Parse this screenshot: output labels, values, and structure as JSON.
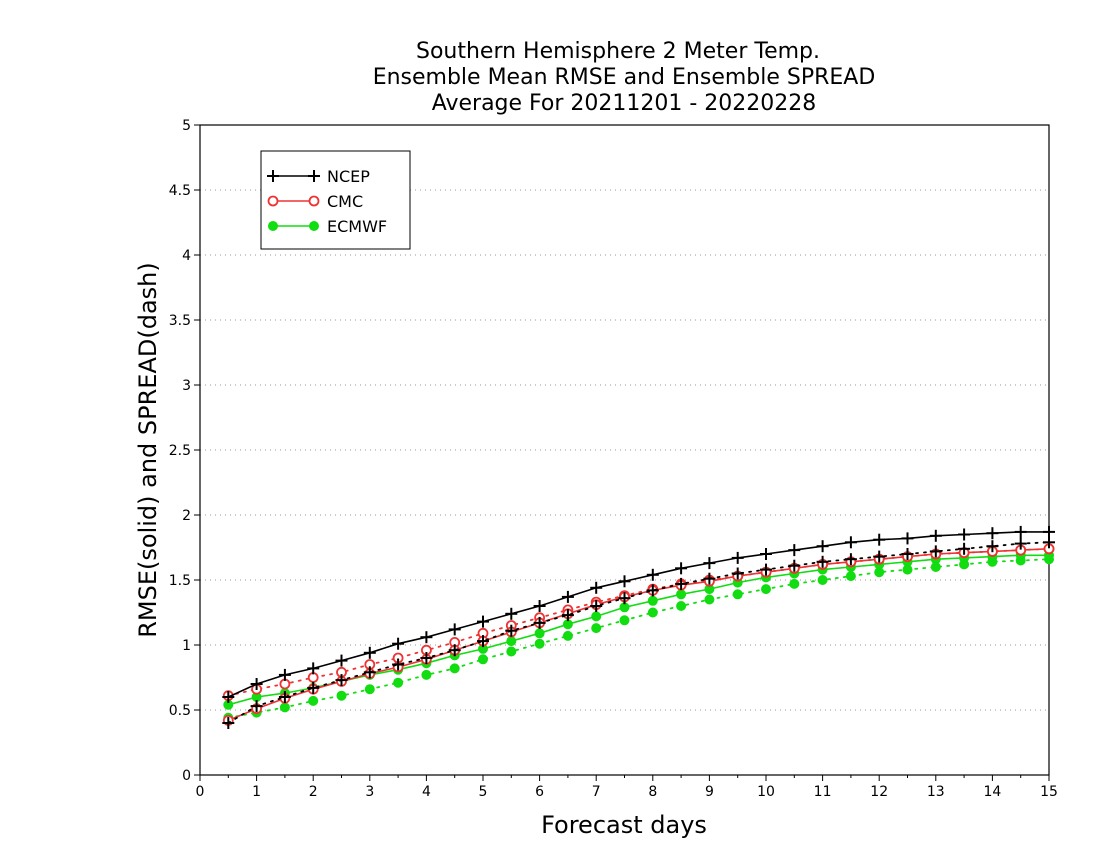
{
  "chart_data": {
    "type": "line",
    "title_lines": [
      "Southern Hemisphere 2 Meter Temp.",
      "Ensemble Mean RMSE and Ensemble SPREAD",
      "Average For 20211201 - 20220228"
    ],
    "xlabel": "Forecast days",
    "ylabel": "RMSE(solid) and SPREAD(dash)",
    "xlim": [
      0,
      15
    ],
    "ylim": [
      0,
      5
    ],
    "xticks": [
      "0",
      "1",
      "2",
      "3",
      "4",
      "5",
      "6",
      "7",
      "8",
      "9",
      "10",
      "11",
      "12",
      "13",
      "14",
      "15"
    ],
    "yticks": [
      "0",
      "0.5",
      "1",
      "1.5",
      "2",
      "2.5",
      "3",
      "3.5",
      "4",
      "4.5",
      "5"
    ],
    "grid": "horizontal dotted",
    "legend_position": "top-left",
    "x": [
      0.5,
      1,
      1.5,
      2,
      2.5,
      3,
      3.5,
      4,
      4.5,
      5,
      5.5,
      6,
      6.5,
      7,
      7.5,
      8,
      8.5,
      9,
      9.5,
      10,
      10.5,
      11,
      11.5,
      12,
      12.5,
      13,
      13.5,
      14,
      14.5,
      15
    ],
    "series": [
      {
        "name": "NCEP",
        "color": "#000000",
        "marker": "plus",
        "rmse": [
          0.6,
          0.7,
          0.77,
          0.82,
          0.88,
          0.94,
          1.01,
          1.06,
          1.12,
          1.18,
          1.24,
          1.3,
          1.37,
          1.44,
          1.49,
          1.54,
          1.59,
          1.63,
          1.67,
          1.7,
          1.73,
          1.76,
          1.79,
          1.81,
          1.82,
          1.84,
          1.85,
          1.86,
          1.87,
          1.87
        ],
        "spread": [
          0.4,
          0.53,
          0.6,
          0.67,
          0.73,
          0.79,
          0.85,
          0.9,
          0.96,
          1.03,
          1.11,
          1.17,
          1.23,
          1.3,
          1.36,
          1.42,
          1.47,
          1.51,
          1.55,
          1.58,
          1.61,
          1.64,
          1.66,
          1.68,
          1.7,
          1.72,
          1.74,
          1.76,
          1.78,
          1.79
        ]
      },
      {
        "name": "CMC",
        "color": "#ee3333",
        "marker": "open-circle",
        "rmse": [
          0.42,
          0.51,
          0.59,
          0.66,
          0.72,
          0.78,
          0.83,
          0.89,
          0.96,
          1.03,
          1.1,
          1.17,
          1.24,
          1.31,
          1.37,
          1.42,
          1.46,
          1.49,
          1.53,
          1.56,
          1.59,
          1.62,
          1.64,
          1.66,
          1.68,
          1.7,
          1.71,
          1.72,
          1.73,
          1.74
        ],
        "spread": [
          0.61,
          0.66,
          0.7,
          0.75,
          0.79,
          0.85,
          0.9,
          0.96,
          1.02,
          1.09,
          1.15,
          1.21,
          1.27,
          1.33,
          1.38,
          1.43,
          1.47,
          1.5,
          1.53,
          1.56,
          1.59,
          1.62,
          1.64,
          1.66,
          1.68,
          1.7,
          1.71,
          1.72,
          1.73,
          1.74
        ]
      },
      {
        "name": "ECMWF",
        "color": "#11dd11",
        "marker": "filled-circle",
        "rmse": [
          0.54,
          0.6,
          0.63,
          0.67,
          0.72,
          0.77,
          0.81,
          0.86,
          0.92,
          0.97,
          1.03,
          1.09,
          1.16,
          1.22,
          1.29,
          1.34,
          1.39,
          1.43,
          1.48,
          1.52,
          1.55,
          1.58,
          1.6,
          1.62,
          1.64,
          1.66,
          1.67,
          1.68,
          1.69,
          1.69
        ],
        "spread": [
          0.44,
          0.48,
          0.52,
          0.57,
          0.61,
          0.66,
          0.71,
          0.77,
          0.82,
          0.89,
          0.95,
          1.01,
          1.07,
          1.13,
          1.19,
          1.25,
          1.3,
          1.35,
          1.39,
          1.43,
          1.47,
          1.5,
          1.53,
          1.56,
          1.58,
          1.6,
          1.62,
          1.64,
          1.65,
          1.66
        ]
      }
    ]
  }
}
